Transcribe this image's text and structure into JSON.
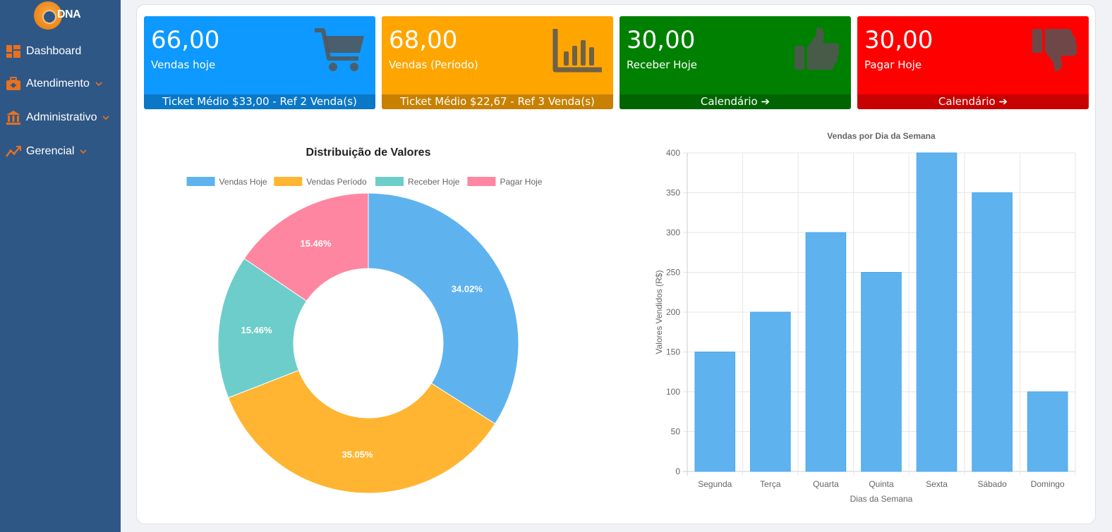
{
  "brand": {
    "logo_text": "DNA"
  },
  "sidebar": {
    "items": [
      {
        "label": "Dashboard",
        "icon": "dashboard-icon",
        "has_submenu": false
      },
      {
        "label": "Atendimento",
        "icon": "briefcase-icon",
        "has_submenu": true
      },
      {
        "label": "Administrativo",
        "icon": "bank-icon",
        "has_submenu": true
      },
      {
        "label": "Gerencial",
        "icon": "chart-line-icon",
        "has_submenu": true
      }
    ],
    "accent": "#e8711f"
  },
  "cards": [
    {
      "value": "66,00",
      "label": "Vendas hoje",
      "footer": "Ticket Médio $33,00 - Ref 2 Venda(s)",
      "color": "#0d99ff",
      "icon": "cart-icon"
    },
    {
      "value": "68,00",
      "label": "Vendas (Período)",
      "footer": "Ticket Médio $22,67 - Ref 3 Venda(s)",
      "color": "#ffa500",
      "icon": "bar-chart-icon"
    },
    {
      "value": "30,00",
      "label": "Receber Hoje",
      "footer": "Calendário ➔",
      "color": "#008000",
      "icon": "thumbs-up-icon"
    },
    {
      "value": "30,00",
      "label": "Pagar Hoje",
      "footer": "Calendário ➔",
      "color": "#ff0000",
      "icon": "thumbs-down-icon"
    }
  ],
  "chart_data": [
    {
      "type": "pie",
      "title": "Distribuição de Valores",
      "labels": [
        "Vendas Hoje",
        "Vendas Período",
        "Receber Hoje",
        "Pagar Hoje"
      ],
      "values": [
        66,
        68,
        30,
        30
      ],
      "percent_labels": [
        "34.02%",
        "35.05%",
        "15.46%",
        "15.46%"
      ],
      "colors": [
        "#5eb3ef",
        "#ffb531",
        "#6dcdca",
        "#ff86a0"
      ],
      "legend": "top",
      "doughnut": true
    },
    {
      "type": "bar",
      "title": "Vendas por Dia da Semana",
      "categories": [
        "Segunda",
        "Terça",
        "Quarta",
        "Quinta",
        "Sexta",
        "Sábado",
        "Domingo"
      ],
      "values": [
        150,
        200,
        300,
        250,
        400,
        350,
        100
      ],
      "xlabel": "Dias da Semana",
      "ylabel": "Valores Vendidos (R$)",
      "ylim": [
        0,
        400
      ],
      "yticks": [
        0,
        50,
        100,
        150,
        200,
        250,
        300,
        350,
        400
      ],
      "color": "#5eb3ef",
      "grid": true
    }
  ]
}
